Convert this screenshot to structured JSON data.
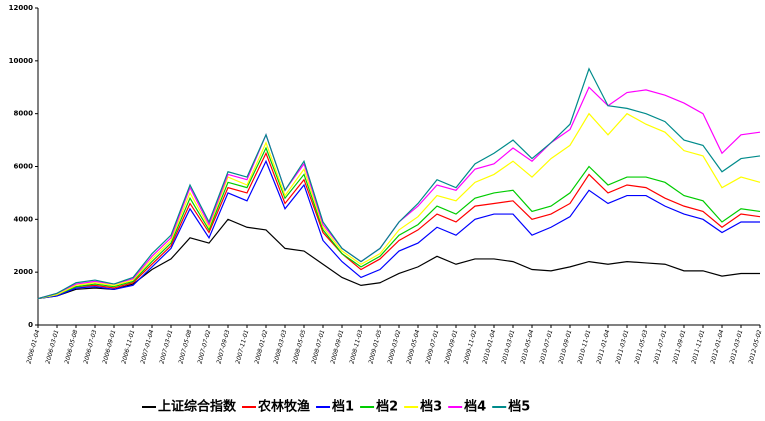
{
  "chart_data": {
    "type": "line",
    "categories": [
      "2006-01-04",
      "2006-03-01",
      "2006-05-08",
      "2006-07-03",
      "2006-09-01",
      "2006-11-01",
      "2007-01-04",
      "2007-03-01",
      "2007-05-08",
      "2007-07-02",
      "2007-09-03",
      "2007-11-01",
      "2008-01-02",
      "2008-03-03",
      "2008-05-05",
      "2008-07-01",
      "2008-09-01",
      "2008-11-03",
      "2009-01-05",
      "2009-03-02",
      "2009-05-04",
      "2009-07-01",
      "2009-09-01",
      "2009-11-02",
      "2010-01-04",
      "2010-03-01",
      "2010-05-04",
      "2010-07-01",
      "2010-09-01",
      "2010-11-01",
      "2011-01-04",
      "2011-03-01",
      "2011-05-03",
      "2011-07-01",
      "2011-09-01",
      "2011-11-01",
      "2012-01-04",
      "2012-03-01",
      "2012-05-02"
    ],
    "series": [
      {
        "name": "上证综合指数",
        "color": "#000000",
        "values": [
          1000,
          1100,
          1350,
          1400,
          1350,
          1550,
          2100,
          2500,
          3300,
          3100,
          4000,
          3700,
          3600,
          2900,
          2800,
          2300,
          1800,
          1500,
          1600,
          1950,
          2200,
          2600,
          2300,
          2500,
          2500,
          2400,
          2100,
          2050,
          2200,
          2400,
          2300,
          2400,
          2350,
          2300,
          2050,
          2050,
          1850,
          1950,
          1950
        ]
      },
      {
        "name": "农林牧渔",
        "color": "#ff0000",
        "values": [
          1000,
          1150,
          1450,
          1500,
          1400,
          1600,
          2300,
          3000,
          4600,
          3500,
          5200,
          5000,
          6500,
          4600,
          5500,
          3500,
          2700,
          2100,
          2500,
          3200,
          3600,
          4200,
          3900,
          4500,
          4600,
          4700,
          4000,
          4200,
          4600,
          5700,
          5000,
          5300,
          5200,
          4800,
          4500,
          4300,
          3700,
          4200,
          4100
        ]
      },
      {
        "name": "档1",
        "color": "#0000ff",
        "values": [
          1000,
          1100,
          1400,
          1450,
          1350,
          1500,
          2200,
          2900,
          4400,
          3300,
          5000,
          4700,
          6200,
          4400,
          5300,
          3200,
          2400,
          1800,
          2100,
          2800,
          3100,
          3700,
          3400,
          4000,
          4200,
          4200,
          3400,
          3700,
          4100,
          5100,
          4600,
          4900,
          4900,
          4500,
          4200,
          4000,
          3500,
          3900,
          3900
        ]
      },
      {
        "name": "档2",
        "color": "#00cc00",
        "values": [
          1000,
          1150,
          1450,
          1550,
          1450,
          1650,
          2400,
          3100,
          4800,
          3600,
          5400,
          5200,
          6700,
          4800,
          5700,
          3600,
          2700,
          2200,
          2600,
          3400,
          3800,
          4500,
          4200,
          4800,
          5000,
          5100,
          4300,
          4500,
          5000,
          6000,
          5300,
          5600,
          5600,
          5400,
          4900,
          4700,
          3900,
          4400,
          4300
        ]
      },
      {
        "name": "档3",
        "color": "#ffff00",
        "values": [
          1000,
          1150,
          1500,
          1600,
          1500,
          1700,
          2500,
          3200,
          5000,
          3700,
          5600,
          5300,
          6900,
          4900,
          5900,
          3700,
          2800,
          2300,
          2700,
          3600,
          4100,
          4900,
          4700,
          5400,
          5700,
          6200,
          5600,
          6300,
          6800,
          8000,
          7200,
          8000,
          7600,
          7300,
          6600,
          6400,
          5200,
          5600,
          5400
        ]
      },
      {
        "name": "档4",
        "color": "#ff00ff",
        "values": [
          1000,
          1200,
          1550,
          1650,
          1550,
          1750,
          2600,
          3300,
          5200,
          3800,
          5700,
          5500,
          7200,
          5100,
          6100,
          3800,
          2900,
          2400,
          2900,
          3900,
          4500,
          5300,
          5100,
          5900,
          6100,
          6700,
          6200,
          6900,
          7400,
          9000,
          8300,
          8800,
          8900,
          8700,
          8400,
          8000,
          6500,
          7200,
          7300
        ]
      },
      {
        "name": "档5",
        "color": "#008b8b",
        "values": [
          1000,
          1200,
          1600,
          1700,
          1550,
          1800,
          2700,
          3400,
          5300,
          3900,
          5800,
          5600,
          7200,
          5100,
          6200,
          3900,
          2900,
          2400,
          2900,
          3900,
          4600,
          5500,
          5200,
          6100,
          6500,
          7000,
          6300,
          6900,
          7600,
          9700,
          8300,
          8200,
          8000,
          7700,
          7000,
          6800,
          5800,
          6300,
          6400
        ]
      }
    ],
    "ylim": [
      0,
      12000
    ],
    "yticks": [
      0,
      2000,
      4000,
      6000,
      8000,
      10000,
      12000
    ]
  }
}
